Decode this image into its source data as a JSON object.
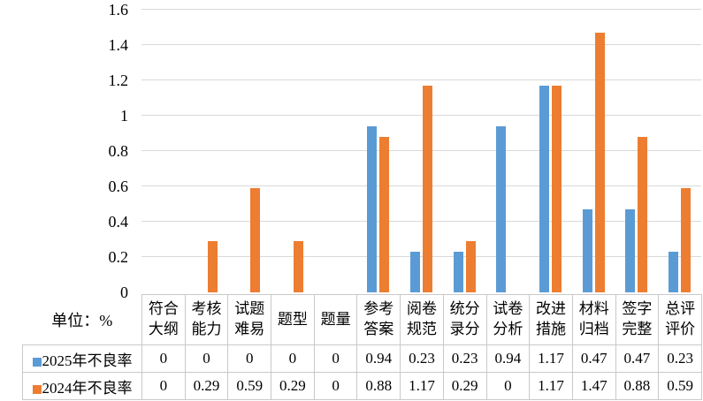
{
  "unit_label": "单位：%",
  "colors": {
    "series_2025": "#5B9BD5",
    "series_2024": "#ED7D31",
    "gridline": "#D9D9D9",
    "table_border": "#C9C9C9"
  },
  "chart_data": {
    "type": "bar",
    "title": "",
    "xlabel": "",
    "ylabel": "",
    "categories": [
      "符合大纲",
      "考核能力",
      "试题难易",
      "题型",
      "题量",
      "参考答案",
      "阅卷规范",
      "统分录分",
      "试卷分析",
      "改进措施",
      "材料归档",
      "签字完整",
      "总评评价"
    ],
    "category_display": [
      "符合\n大纲",
      "考核\n能力",
      "试题\n难易",
      "题型",
      "题量",
      "参考\n答案",
      "阅卷\n规范",
      "统分\n录分",
      "试卷\n分析",
      "改进\n措施",
      "材料\n归档",
      "签字\n完整",
      "总评\n评价"
    ],
    "series": [
      {
        "name": "2025年不良率",
        "color": "#5B9BD5",
        "values": [
          0,
          0,
          0,
          0,
          0,
          0.94,
          0.23,
          0.23,
          0.94,
          1.17,
          0.47,
          0.47,
          0.23
        ],
        "display": [
          "0",
          "0",
          "0",
          "0",
          "0",
          "0.94",
          "0.23",
          "0.23",
          "0.94",
          "1.17",
          "0.47",
          "0.47",
          "0.23"
        ]
      },
      {
        "name": "2024年不良率",
        "color": "#ED7D31",
        "values": [
          0,
          0.29,
          0.59,
          0.29,
          0,
          0.88,
          1.17,
          0.29,
          0,
          1.17,
          1.47,
          0.88,
          0.59
        ],
        "display": [
          "0",
          "0.29",
          "0.59",
          "0.29",
          "0",
          "0.88",
          "1.17",
          "0.29",
          "0",
          "1.17",
          "1.47",
          "0.88",
          "0.59"
        ]
      }
    ],
    "ylim": [
      0,
      1.6
    ],
    "ytick_step": 0.2,
    "yticks": [
      "0",
      "0.2",
      "0.4",
      "0.6",
      "0.8",
      "1",
      "1.2",
      "1.4",
      "1.6"
    ],
    "grid": true,
    "legend_position": "data-table-left"
  }
}
